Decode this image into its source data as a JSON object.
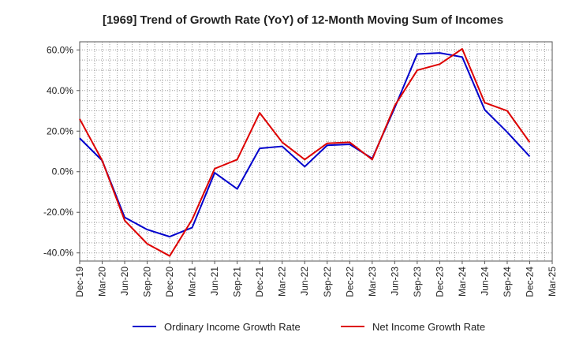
{
  "chart_data": {
    "type": "line",
    "title": "[1969]  Trend of Growth Rate (YoY) of 12-Month Moving Sum of Incomes",
    "xlabel": "",
    "ylabel": "",
    "ylim": [
      -44,
      64
    ],
    "y_ticks": [
      60,
      40,
      20,
      0,
      -20,
      -40
    ],
    "y_tick_labels": [
      "60.0%",
      "40.0%",
      "20.0%",
      "0.0%",
      "-20.0%",
      "-40.0%"
    ],
    "x_tick_labels": [
      "Dec-19",
      "Mar-20",
      "Jun-20",
      "Sep-20",
      "Dec-20",
      "Mar-21",
      "Jun-21",
      "Sep-21",
      "Dec-21",
      "Mar-22",
      "Jun-22",
      "Sep-22",
      "Dec-22",
      "Mar-23",
      "Jun-23",
      "Sep-23",
      "Dec-23",
      "Mar-24",
      "Jun-24",
      "Sep-24",
      "Dec-24",
      "Mar-25"
    ],
    "x": [
      "Dec-19",
      "Jan-20",
      "Feb-20",
      "Mar-20",
      "Apr-20",
      "May-20",
      "Jun-20",
      "Jul-20",
      "Aug-20",
      "Sep-20",
      "Oct-20",
      "Nov-20",
      "Dec-20",
      "Jan-21",
      "Feb-21",
      "Mar-21",
      "Apr-21",
      "May-21",
      "Jun-21",
      "Jul-21",
      "Aug-21",
      "Sep-21",
      "Oct-21",
      "Nov-21",
      "Dec-21",
      "Jan-22",
      "Feb-22",
      "Mar-22",
      "Apr-22",
      "May-22",
      "Jun-22",
      "Jul-22",
      "Aug-22",
      "Sep-22",
      "Oct-22",
      "Nov-22",
      "Dec-22",
      "Jan-23",
      "Feb-23",
      "Mar-23",
      "Apr-23",
      "May-23",
      "Jun-23",
      "Jul-23",
      "Aug-23",
      "Sep-23",
      "Oct-23",
      "Nov-23",
      "Dec-23",
      "Jan-24",
      "Feb-24",
      "Mar-24",
      "Apr-24",
      "May-24",
      "Jun-24",
      "Jul-24",
      "Aug-24",
      "Sep-24",
      "Oct-24",
      "Nov-24",
      "Dec-24"
    ],
    "grid": true,
    "legend_position": "bottom",
    "series": [
      {
        "name": "Ordinary Income Growth Rate",
        "color": "#0000cc",
        "points": [
          [
            "Dec-19",
            16.5
          ],
          [
            "Mar-20",
            5.5
          ],
          [
            "Jun-20",
            -22.5
          ],
          [
            "Sep-20",
            -28.5
          ],
          [
            "Dec-20",
            -32.0
          ],
          [
            "Mar-21",
            -27.5
          ],
          [
            "Jun-21",
            -0.5
          ],
          [
            "Sep-21",
            -8.5
          ],
          [
            "Dec-21",
            11.5
          ],
          [
            "Mar-22",
            12.5
          ],
          [
            "Jun-22",
            2.5
          ],
          [
            "Sep-22",
            13.0
          ],
          [
            "Dec-22",
            13.5
          ],
          [
            "Mar-23",
            6.5
          ],
          [
            "Jun-23",
            31.5
          ],
          [
            "Sep-23",
            58.0
          ],
          [
            "Dec-23",
            58.5
          ],
          [
            "Mar-24",
            56.5
          ],
          [
            "Jun-24",
            30.5
          ],
          [
            "Sep-24",
            19.5
          ],
          [
            "Dec-24",
            7.5
          ]
        ]
      },
      {
        "name": "Net Income Growth Rate",
        "color": "#dd0000",
        "points": [
          [
            "Dec-19",
            26.0
          ],
          [
            "Mar-20",
            5.5
          ],
          [
            "Jun-20",
            -24.0
          ],
          [
            "Sep-20",
            -35.5
          ],
          [
            "Dec-20",
            -41.5
          ],
          [
            "Mar-21",
            -23.5
          ],
          [
            "Jun-21",
            1.5
          ],
          [
            "Sep-21",
            6.0
          ],
          [
            "Dec-21",
            29.0
          ],
          [
            "Mar-22",
            14.5
          ],
          [
            "Jun-22",
            6.0
          ],
          [
            "Sep-22",
            14.0
          ],
          [
            "Dec-22",
            14.5
          ],
          [
            "Mar-23",
            6.0
          ],
          [
            "Jun-23",
            32.5
          ],
          [
            "Sep-23",
            50.0
          ],
          [
            "Dec-23",
            53.0
          ],
          [
            "Mar-24",
            60.5
          ],
          [
            "Jun-24",
            34.0
          ],
          [
            "Sep-24",
            30.0
          ],
          [
            "Dec-24",
            14.5
          ]
        ]
      }
    ]
  }
}
